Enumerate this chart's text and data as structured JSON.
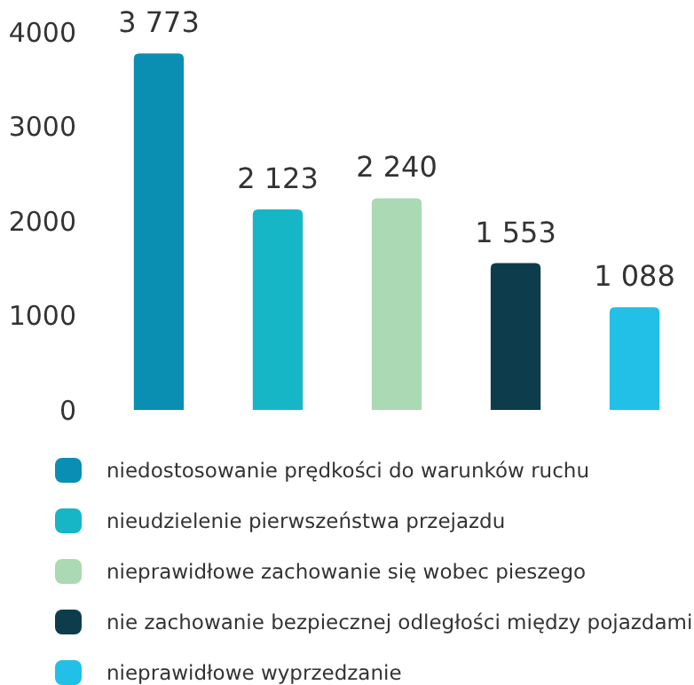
{
  "chart_data": {
    "type": "bar",
    "stacked": true,
    "categories": [
      null,
      null,
      null,
      null,
      null
    ],
    "series": [
      {
        "name": "niedostosowanie prędkości do warunków ruchu",
        "color": "#0a8fb3",
        "values": [
          3773,
          null,
          null,
          null,
          null
        ],
        "value_labels": [
          "3 773",
          null,
          null,
          null,
          null
        ]
      },
      {
        "name": "nieudzielenie pierwszeństwa przejazdu",
        "color": "#17b6c6",
        "values": [
          null,
          2123,
          null,
          null,
          null
        ],
        "value_labels": [
          null,
          "2 123",
          null,
          null,
          null
        ]
      },
      {
        "name": "nieprawidłowe zachowanie się wobec pieszego",
        "color": "#aad9b4",
        "values": [
          null,
          null,
          2240,
          null,
          null
        ],
        "value_labels": [
          null,
          null,
          "2 240",
          null,
          null
        ]
      },
      {
        "name": "nie zachowanie bezpiecznej odległości między pojazdami",
        "color": "#0d3d4d",
        "values": [
          null,
          null,
          null,
          1553,
          null
        ],
        "value_labels": [
          null,
          null,
          null,
          "1 553",
          null
        ]
      },
      {
        "name": "nieprawidłowe wyprzedzanie",
        "color": "#22bfe6",
        "values": [
          null,
          null,
          null,
          null,
          1088
        ],
        "value_labels": [
          null,
          null,
          null,
          null,
          "1 088"
        ]
      }
    ],
    "ylim": [
      0,
      4000
    ],
    "yticks": [
      0,
      1000,
      2000,
      3000,
      4000
    ],
    "tick_labels": "y",
    "legend": "bottom"
  }
}
